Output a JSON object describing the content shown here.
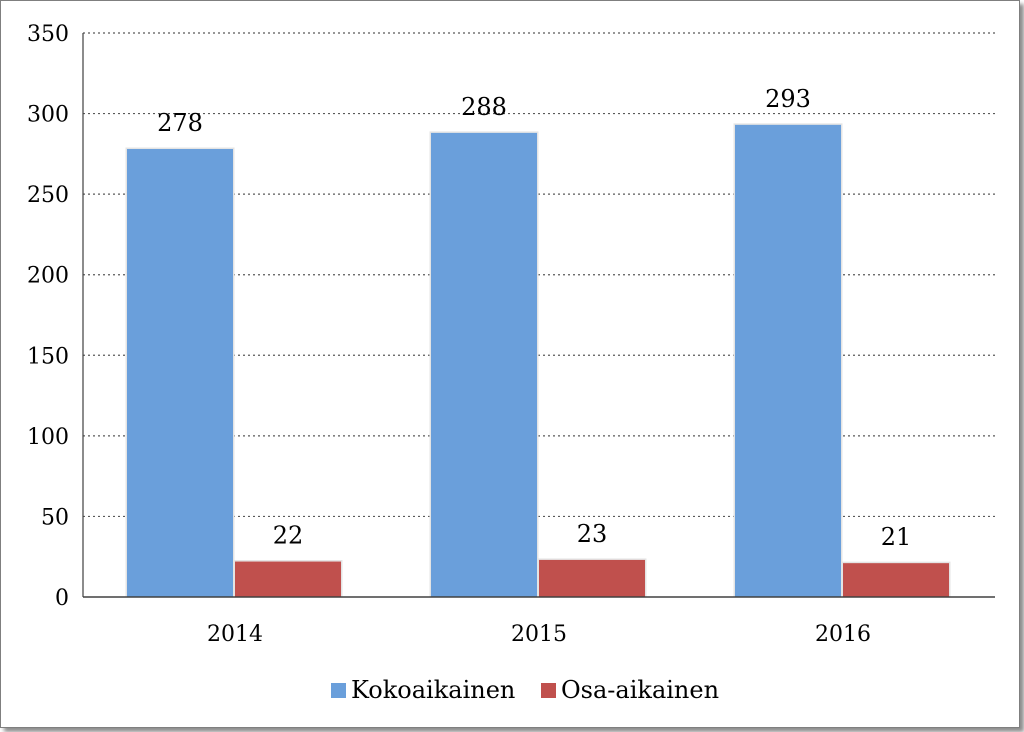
{
  "chart_data": {
    "type": "bar",
    "categories": [
      "2014",
      "2015",
      "2016"
    ],
    "series": [
      {
        "name": "Kokoaikainen",
        "values": [
          278,
          288,
          293
        ],
        "color": "#6a9fdb"
      },
      {
        "name": "Osa-aikainen",
        "values": [
          22,
          23,
          21
        ],
        "color": "#c0504d"
      }
    ],
    "ylim": [
      0,
      350
    ],
    "yticks": [
      0,
      50,
      100,
      150,
      200,
      250,
      300,
      350
    ],
    "grid": true,
    "grid_style": "dotted",
    "legend_position": "bottom",
    "data_labels": true
  }
}
